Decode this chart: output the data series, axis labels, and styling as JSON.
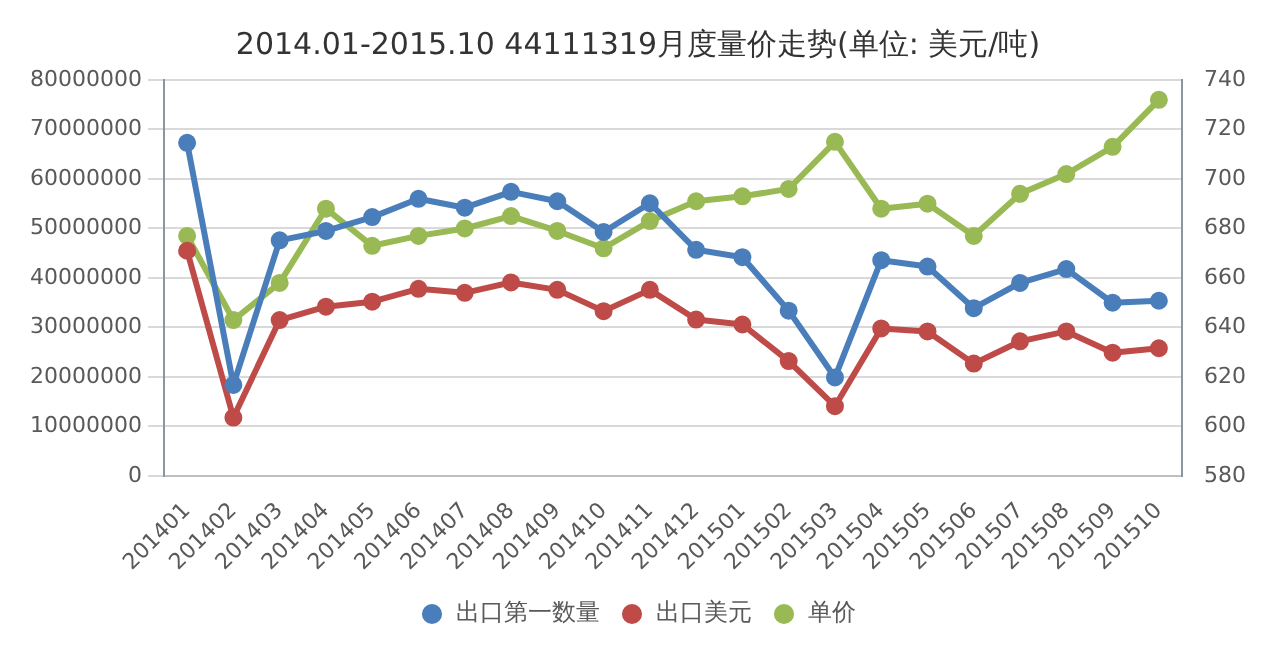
{
  "chart_data": {
    "type": "line",
    "title": "2014.01-2015.10 44111319月度量价走势(单位: 美元/吨)",
    "categories": [
      "201401",
      "201402",
      "201403",
      "201404",
      "201405",
      "201406",
      "201407",
      "201408",
      "201409",
      "201410",
      "201411",
      "201412",
      "201501",
      "201502",
      "201503",
      "201504",
      "201505",
      "201506",
      "201507",
      "201508",
      "201509",
      "201510"
    ],
    "series": [
      {
        "name": "出口第一数量",
        "color": "#4a7ebb",
        "values": [
          67300000,
          18400000,
          47600000,
          49500000,
          52300000,
          56000000,
          54200000,
          57400000,
          55500000,
          49300000,
          55100000,
          45700000,
          44200000,
          33400000,
          19900000,
          43600000,
          42300000,
          33900000,
          39000000,
          41800000,
          35000000,
          35400000
        ]
      },
      {
        "name": "出口美元",
        "color": "#be4b48",
        "values": [
          45500000,
          11800000,
          31500000,
          34200000,
          35200000,
          37800000,
          37000000,
          39100000,
          37600000,
          33300000,
          37600000,
          31600000,
          30600000,
          23200000,
          14100000,
          29800000,
          29200000,
          22700000,
          27200000,
          29200000,
          24900000,
          25800000
        ]
      },
      {
        "name": "单价",
        "color": "#98b954",
        "axis": "y2",
        "values": [
          677,
          643,
          658,
          688,
          673,
          677,
          680,
          685,
          679,
          672,
          683,
          691,
          693,
          696,
          715,
          688,
          690,
          677,
          694,
          702,
          713,
          732
        ]
      }
    ],
    "ylim": [
      0,
      80000000
    ],
    "yticks": [
      0,
      10000000,
      20000000,
      30000000,
      40000000,
      50000000,
      60000000,
      70000000,
      80000000
    ],
    "y2lim": [
      580,
      740
    ],
    "y2ticks": [
      580,
      600,
      620,
      640,
      660,
      680,
      700,
      720,
      740
    ],
    "grid": "y",
    "legend": "bottom",
    "marker": "circle",
    "line_style": "solid"
  }
}
